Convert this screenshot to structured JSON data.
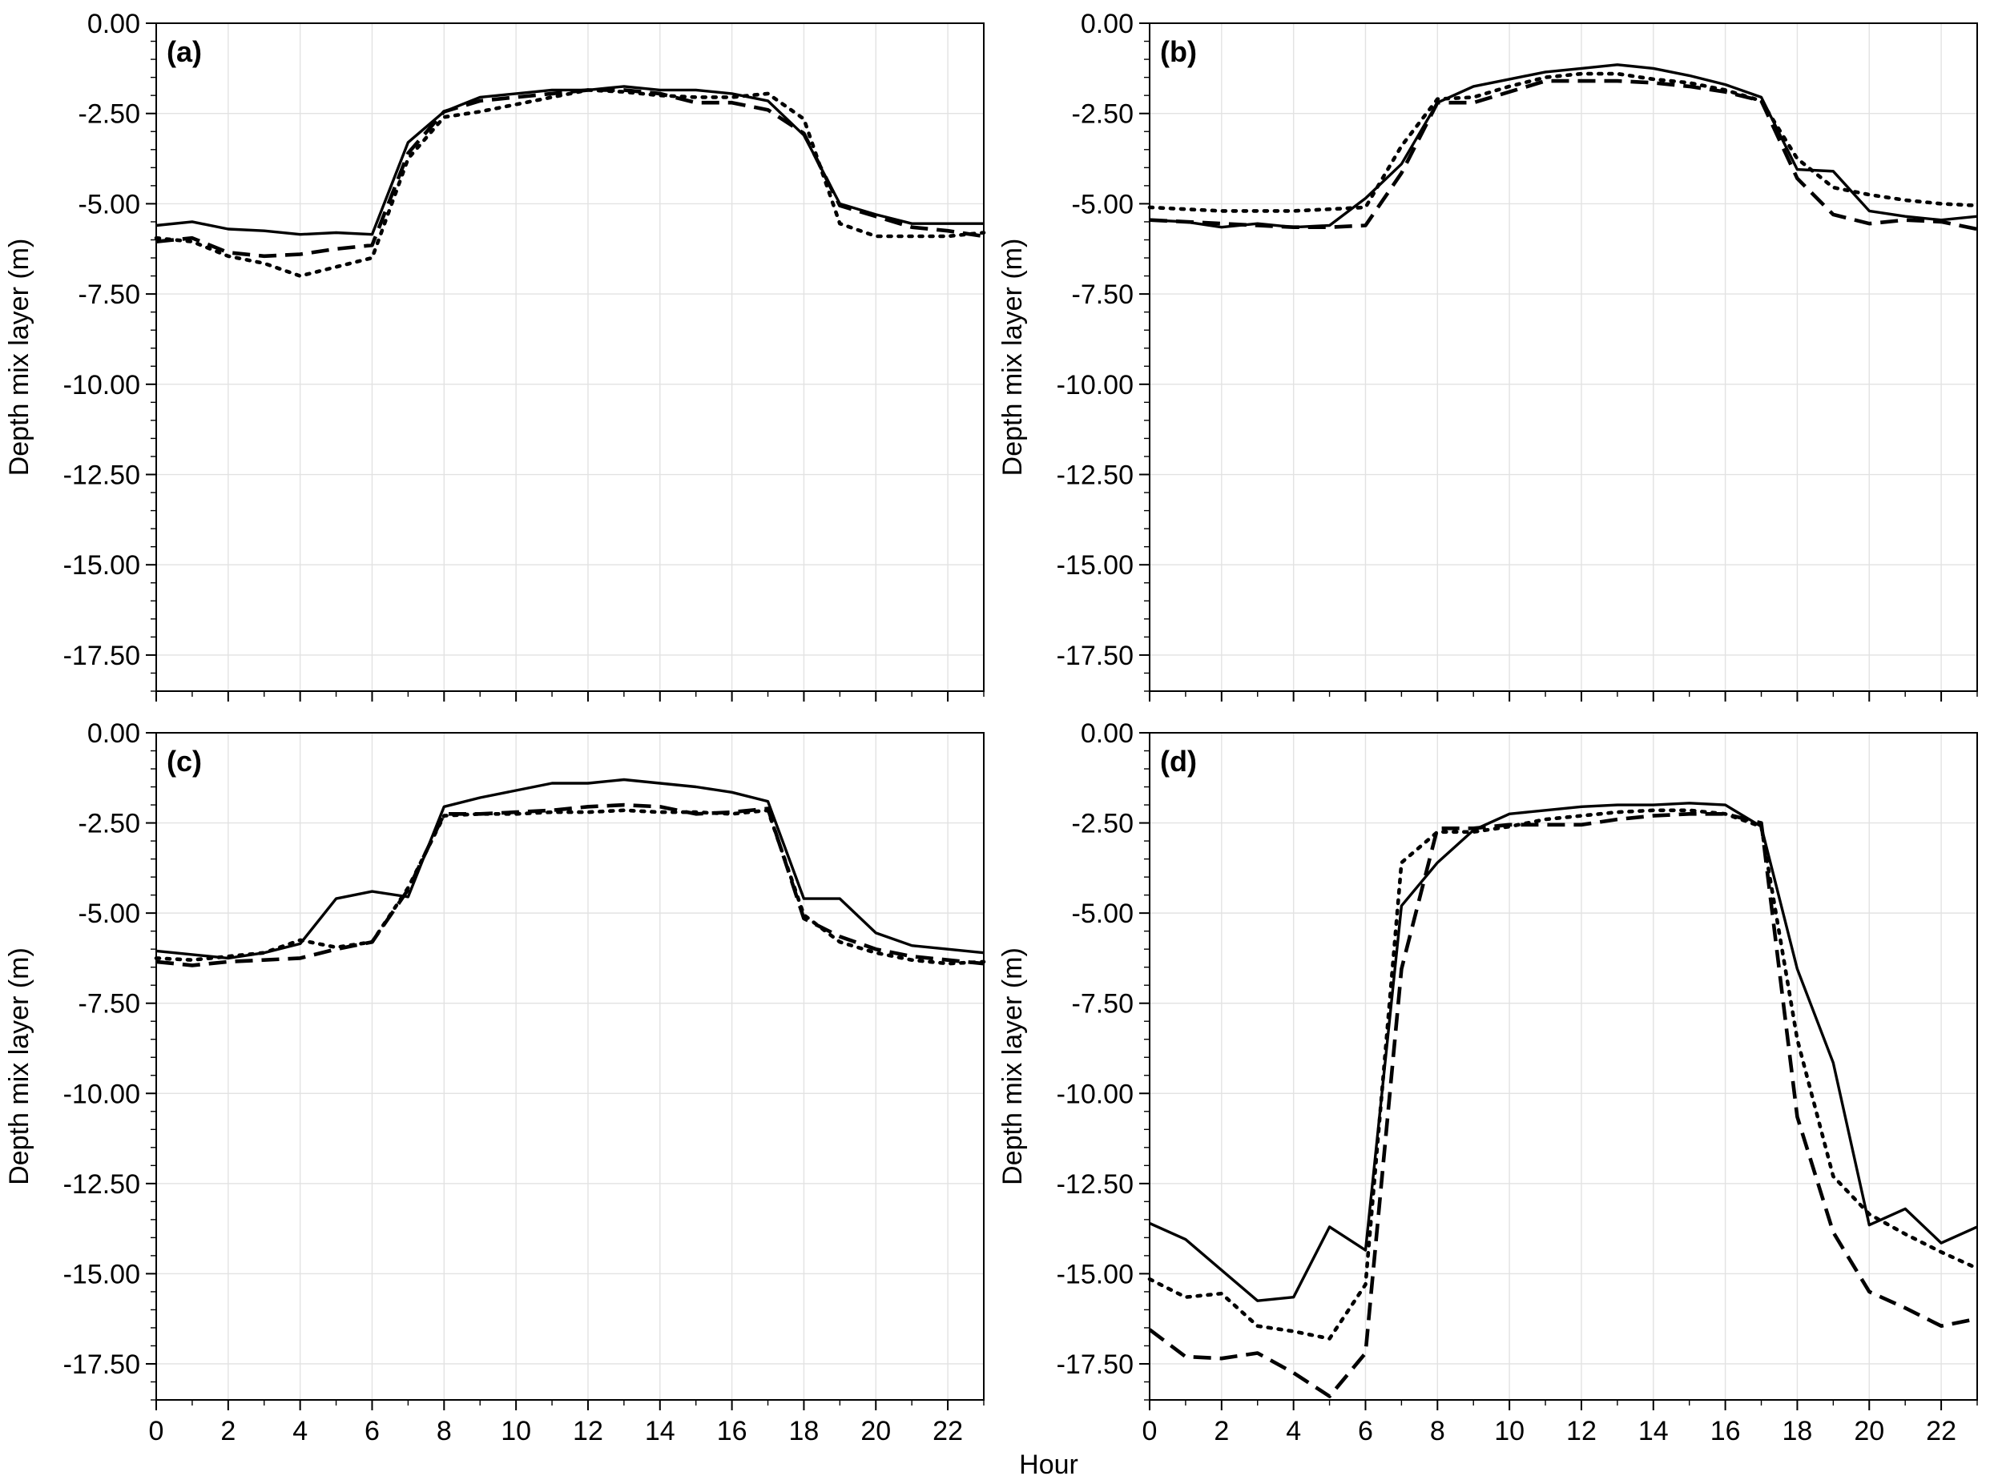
{
  "figure": {
    "shared_xlabel": "Hour"
  },
  "chart_data": [
    {
      "type": "line",
      "panel_label": "(a)",
      "xlabel": "",
      "ylabel": "Depth mix layer (m)",
      "xlim": [
        0,
        23
      ],
      "ylim": [
        -18.5,
        0
      ],
      "xticks": [
        0,
        2,
        4,
        6,
        8,
        10,
        12,
        14,
        16,
        18,
        20,
        22
      ],
      "xtick_labels": [
        "0",
        "2",
        "4",
        "6",
        "8",
        "10",
        "12",
        "14",
        "16",
        "18",
        "20",
        "22"
      ],
      "yticks": [
        0,
        -2.5,
        -5,
        -7.5,
        -10,
        -12.5,
        -15,
        -17.5
      ],
      "ytick_labels": [
        "0.00",
        "-2.50",
        "-5.00",
        "-7.50",
        "-10.00",
        "-12.50",
        "-15.00",
        "-17.50"
      ],
      "grid": true,
      "x": [
        0,
        1,
        2,
        3,
        4,
        5,
        6,
        7,
        8,
        9,
        10,
        11,
        12,
        13,
        14,
        15,
        16,
        17,
        18,
        19,
        20,
        21,
        22,
        23
      ],
      "series": [
        {
          "name": "solid",
          "style": "solid",
          "values": [
            -5.6,
            -5.5,
            -5.7,
            -5.75,
            -5.85,
            -5.8,
            -5.85,
            -3.3,
            -2.45,
            -2.05,
            -1.95,
            -1.85,
            -1.85,
            -1.75,
            -1.85,
            -1.85,
            -1.95,
            -2.15,
            -3.1,
            -5.0,
            -5.3,
            -5.55,
            -5.55,
            -5.55
          ]
        },
        {
          "name": "dashed",
          "style": "dashed",
          "values": [
            -6.05,
            -5.95,
            -6.35,
            -6.45,
            -6.4,
            -6.25,
            -6.15,
            -3.6,
            -2.45,
            -2.15,
            -2.05,
            -1.95,
            -1.85,
            -1.85,
            -1.95,
            -2.2,
            -2.2,
            -2.4,
            -3.05,
            -5.05,
            -5.35,
            -5.65,
            -5.75,
            -5.9
          ]
        },
        {
          "name": "dotted",
          "style": "dotted",
          "values": [
            -5.95,
            -6.05,
            -6.45,
            -6.65,
            -7.0,
            -6.75,
            -6.5,
            -3.75,
            -2.6,
            -2.45,
            -2.25,
            -2.05,
            -1.85,
            -1.9,
            -2.0,
            -2.05,
            -2.05,
            -1.95,
            -2.65,
            -5.55,
            -5.9,
            -5.9,
            -5.9,
            -5.8
          ]
        }
      ]
    },
    {
      "type": "line",
      "panel_label": "(b)",
      "xlabel": "",
      "ylabel": "Depth mix layer (m)",
      "xlim": [
        0,
        23
      ],
      "ylim": [
        -18.5,
        0
      ],
      "xticks": [
        0,
        2,
        4,
        6,
        8,
        10,
        12,
        14,
        16,
        18,
        20,
        22
      ],
      "xtick_labels": [
        "0",
        "2",
        "4",
        "6",
        "8",
        "10",
        "12",
        "14",
        "16",
        "18",
        "20",
        "22"
      ],
      "yticks": [
        0,
        -2.5,
        -5,
        -7.5,
        -10,
        -12.5,
        -15,
        -17.5
      ],
      "ytick_labels": [
        "0.00",
        "-2.50",
        "-5.00",
        "-7.50",
        "-10.00",
        "-12.50",
        "-15.00",
        "-17.50"
      ],
      "grid": true,
      "x": [
        0,
        1,
        2,
        3,
        4,
        5,
        6,
        7,
        8,
        9,
        10,
        11,
        12,
        13,
        14,
        15,
        16,
        17,
        18,
        19,
        20,
        21,
        22,
        23
      ],
      "series": [
        {
          "name": "solid",
          "style": "solid",
          "values": [
            -5.45,
            -5.5,
            -5.65,
            -5.55,
            -5.65,
            -5.6,
            -4.85,
            -3.9,
            -2.2,
            -1.75,
            -1.55,
            -1.35,
            -1.25,
            -1.15,
            -1.25,
            -1.45,
            -1.7,
            -2.05,
            -4.05,
            -4.1,
            -5.2,
            -5.35,
            -5.45,
            -5.35
          ]
        },
        {
          "name": "dashed",
          "style": "dashed",
          "values": [
            -5.45,
            -5.5,
            -5.55,
            -5.6,
            -5.65,
            -5.65,
            -5.6,
            -4.15,
            -2.2,
            -2.2,
            -1.9,
            -1.6,
            -1.6,
            -1.6,
            -1.65,
            -1.75,
            -1.9,
            -2.15,
            -4.3,
            -5.3,
            -5.55,
            -5.45,
            -5.5,
            -5.7
          ]
        },
        {
          "name": "dotted",
          "style": "dotted",
          "values": [
            -5.1,
            -5.15,
            -5.2,
            -5.2,
            -5.2,
            -5.15,
            -5.1,
            -3.4,
            -2.1,
            -2.05,
            -1.75,
            -1.5,
            -1.4,
            -1.4,
            -1.55,
            -1.65,
            -1.85,
            -2.15,
            -3.75,
            -4.55,
            -4.75,
            -4.9,
            -5.0,
            -5.05
          ]
        }
      ]
    },
    {
      "type": "line",
      "panel_label": "(c)",
      "xlabel": "",
      "ylabel": "Depth mix layer (m)",
      "xlim": [
        0,
        23
      ],
      "ylim": [
        -18.5,
        0
      ],
      "xticks": [
        0,
        2,
        4,
        6,
        8,
        10,
        12,
        14,
        16,
        18,
        20,
        22
      ],
      "xtick_labels": [
        "0",
        "2",
        "4",
        "6",
        "8",
        "10",
        "12",
        "14",
        "16",
        "18",
        "20",
        "22"
      ],
      "yticks": [
        0,
        -2.5,
        -5,
        -7.5,
        -10,
        -12.5,
        -15,
        -17.5
      ],
      "ytick_labels": [
        "0.00",
        "-2.50",
        "-5.00",
        "-7.50",
        "-10.00",
        "-12.50",
        "-15.00",
        "-17.50"
      ],
      "grid": true,
      "x": [
        0,
        1,
        2,
        3,
        4,
        5,
        6,
        7,
        8,
        9,
        10,
        11,
        12,
        13,
        14,
        15,
        16,
        17,
        18,
        19,
        20,
        21,
        22,
        23
      ],
      "series": [
        {
          "name": "solid",
          "style": "solid",
          "values": [
            -6.05,
            -6.15,
            -6.25,
            -6.1,
            -5.85,
            -4.6,
            -4.4,
            -4.55,
            -2.05,
            -1.8,
            -1.6,
            -1.4,
            -1.4,
            -1.3,
            -1.4,
            -1.5,
            -1.65,
            -1.9,
            -4.6,
            -4.6,
            -5.55,
            -5.9,
            -6.0,
            -6.1
          ]
        },
        {
          "name": "dashed",
          "style": "dashed",
          "values": [
            -6.35,
            -6.45,
            -6.35,
            -6.3,
            -6.25,
            -6.0,
            -5.8,
            -4.35,
            -2.25,
            -2.25,
            -2.2,
            -2.15,
            -2.05,
            -2.0,
            -2.05,
            -2.25,
            -2.2,
            -2.1,
            -5.15,
            -5.65,
            -6.0,
            -6.2,
            -6.3,
            -6.4
          ]
        },
        {
          "name": "dotted",
          "style": "dotted",
          "values": [
            -6.25,
            -6.3,
            -6.2,
            -6.1,
            -5.75,
            -5.95,
            -5.8,
            -4.3,
            -2.3,
            -2.25,
            -2.25,
            -2.2,
            -2.2,
            -2.15,
            -2.2,
            -2.2,
            -2.25,
            -2.15,
            -5.05,
            -5.8,
            -6.1,
            -6.3,
            -6.4,
            -6.35
          ]
        }
      ]
    },
    {
      "type": "line",
      "panel_label": "(d)",
      "xlabel": "",
      "ylabel": "Depth mix layer (m)",
      "xlim": [
        0,
        23
      ],
      "ylim": [
        -18.5,
        0
      ],
      "xticks": [
        0,
        2,
        4,
        6,
        8,
        10,
        12,
        14,
        16,
        18,
        20,
        22
      ],
      "xtick_labels": [
        "0",
        "2",
        "4",
        "6",
        "8",
        "10",
        "12",
        "14",
        "16",
        "18",
        "20",
        "22"
      ],
      "yticks": [
        0,
        -2.5,
        -5,
        -7.5,
        -10,
        -12.5,
        -15,
        -17.5
      ],
      "ytick_labels": [
        "0.00",
        "-2.50",
        "-5.00",
        "-7.50",
        "-10.00",
        "-12.50",
        "-15.00",
        "-17.50"
      ],
      "grid": true,
      "x": [
        0,
        1,
        2,
        3,
        4,
        5,
        6,
        7,
        8,
        9,
        10,
        11,
        12,
        13,
        14,
        15,
        16,
        17,
        18,
        19,
        20,
        21,
        22,
        23
      ],
      "series": [
        {
          "name": "solid",
          "style": "solid",
          "values": [
            -13.6,
            -14.05,
            -14.9,
            -15.75,
            -15.65,
            -13.7,
            -14.35,
            -4.8,
            -3.6,
            -2.7,
            -2.25,
            -2.15,
            -2.05,
            -2.0,
            -2.0,
            -1.95,
            -2.0,
            -2.6,
            -6.55,
            -9.15,
            -13.65,
            -13.2,
            -14.15,
            -13.7
          ]
        },
        {
          "name": "dashed",
          "style": "dashed",
          "values": [
            -16.55,
            -17.3,
            -17.35,
            -17.2,
            -17.75,
            -18.4,
            -17.2,
            -6.55,
            -2.65,
            -2.65,
            -2.55,
            -2.55,
            -2.55,
            -2.4,
            -2.3,
            -2.25,
            -2.25,
            -2.5,
            -10.65,
            -13.85,
            -15.5,
            -15.95,
            -16.45,
            -16.25
          ]
        },
        {
          "name": "dotted",
          "style": "dotted",
          "values": [
            -15.15,
            -15.65,
            -15.55,
            -16.45,
            -16.6,
            -16.8,
            -15.3,
            -3.6,
            -2.75,
            -2.75,
            -2.6,
            -2.4,
            -2.3,
            -2.2,
            -2.15,
            -2.15,
            -2.25,
            -2.6,
            -8.5,
            -12.3,
            -13.35,
            -13.9,
            -14.4,
            -14.85
          ]
        }
      ]
    }
  ]
}
